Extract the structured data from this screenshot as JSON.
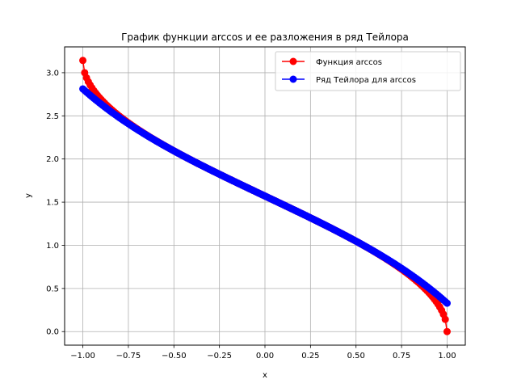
{
  "chart_data": {
    "type": "line",
    "title": "График функции arccos и ее разложения в ряд Тейлора",
    "xlabel": "x",
    "ylabel": "y",
    "xlim": [
      -1.1,
      1.1
    ],
    "ylim": [
      -0.157,
      3.299
    ],
    "grid": true,
    "legend_placement": "top-right",
    "x_ticks": [
      -1.0,
      -0.75,
      -0.5,
      -0.25,
      0.0,
      0.25,
      0.5,
      0.75,
      1.0
    ],
    "x_tick_labels": [
      "−1.00",
      "−0.75",
      "−0.50",
      "−0.25",
      "0.00",
      "0.25",
      "0.50",
      "0.75",
      "1.00"
    ],
    "y_ticks": [
      0.0,
      0.5,
      1.0,
      1.5,
      2.0,
      2.5,
      3.0
    ],
    "y_tick_labels": [
      "0.0",
      "0.5",
      "1.0",
      "1.5",
      "2.0",
      "2.5",
      "3.0"
    ],
    "x_range": {
      "start": -1.0,
      "end": 1.0,
      "count": 200
    },
    "series": [
      {
        "name": "Функция arccos",
        "function": "arccos(x)",
        "color": "#ff0000",
        "marker": "circle"
      },
      {
        "name": "Ряд Тейлора для arccos",
        "function": "pi/2 - x - x^3/6 - 3x^5/40",
        "color": "#0000ff",
        "marker": "circle"
      }
    ]
  }
}
